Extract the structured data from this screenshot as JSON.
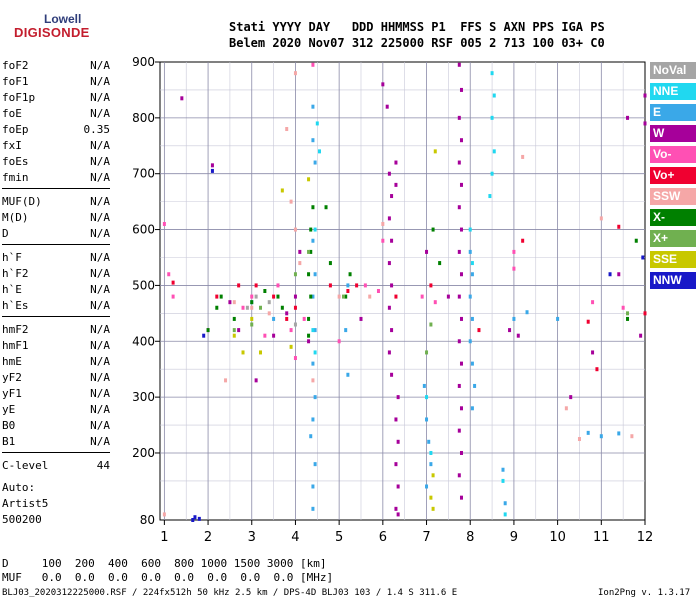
{
  "logo": {
    "top": "Lowell",
    "bottom": "DIGISONDE"
  },
  "header": {
    "labels": "Stati YYYY DAY   DDD HHMMSS P1  FFS S AXN PPS IGA PS",
    "values": "Belem 2020 Nov07 312 225000 RSF 005 2 713 100 03+ C0"
  },
  "params": [
    {
      "k": "foF2",
      "v": "N/A"
    },
    {
      "k": "foF1",
      "v": "N/A"
    },
    {
      "k": "foF1p",
      "v": "N/A"
    },
    {
      "k": "foE",
      "v": "N/A"
    },
    {
      "k": "foEp",
      "v": "0.35"
    },
    {
      "k": "fxI",
      "v": "N/A"
    },
    {
      "k": "foEs",
      "v": "N/A"
    },
    {
      "k": "fmin",
      "v": "N/A"
    },
    {
      "k": "MUF(D)",
      "v": "N/A"
    },
    {
      "k": "M(D)",
      "v": "N/A"
    },
    {
      "k": "D",
      "v": "N/A"
    },
    {
      "k": "h`F",
      "v": "N/A"
    },
    {
      "k": "h`F2",
      "v": "N/A"
    },
    {
      "k": "h`E",
      "v": "N/A"
    },
    {
      "k": "h`Es",
      "v": "N/A"
    },
    {
      "k": "hmF2",
      "v": "N/A"
    },
    {
      "k": "hmF1",
      "v": "N/A"
    },
    {
      "k": "hmE",
      "v": "N/A"
    },
    {
      "k": "yF2",
      "v": "N/A"
    },
    {
      "k": "yF1",
      "v": "N/A"
    },
    {
      "k": "yE",
      "v": "N/A"
    },
    {
      "k": "B0",
      "v": "N/A"
    },
    {
      "k": "B1",
      "v": "N/A"
    },
    {
      "k": "C-level",
      "v": "44"
    }
  ],
  "auto": {
    "line1": "Auto:",
    "line2": "Artist5",
    "line3": "500200"
  },
  "footer": {
    "d_row": "D     100  200  400  600  800 1000 1500 3000 [km]",
    "muf_row": "MUF   0.0  0.0  0.0  0.0  0.0  0.0  0.0  0.0 [MHz]",
    "file_info": "BLJ03_2020312225000.RSF / 224fx512h 50 kHz 2.5 km / DPS-4D BLJ03 103 / 1.4 S 311.6 E",
    "version": "Ion2Png v. 1.3.17"
  },
  "colors": {
    "NoVal": "#a5a5a5",
    "NNE": "#20d8f0",
    "E": "#3aa8e8",
    "W": "#a6009a",
    "Vo-": "#ff50b4",
    "Vo+": "#f00030",
    "SSW": "#f5a7a7",
    "X-": "#008000",
    "X+": "#70b050",
    "SSE": "#c8c800",
    "NNW": "#1818c8"
  },
  "chart_data": {
    "type": "scatter",
    "title": "",
    "xlabel": "",
    "ylabel": "",
    "xlim": [
      0.9,
      12
    ],
    "ylim": [
      80,
      900
    ],
    "x_ticks": [
      1,
      2,
      3,
      4,
      5,
      6,
      7,
      8,
      9,
      10,
      11,
      12
    ],
    "y_ticks": [
      200,
      300,
      400,
      500,
      600,
      700,
      800,
      900
    ],
    "y_tick_labels": [
      "200",
      "300",
      "400",
      "500",
      "600",
      "700",
      "800",
      "900"
    ],
    "y_bottom_label": "80",
    "legend": [
      "NoVal",
      "NNE",
      "E",
      "W",
      "Vo-",
      "Vo+",
      "SSW",
      "X-",
      "X+",
      "SSE",
      "NNW"
    ],
    "legend_position": "right",
    "grid": true,
    "series": [
      {
        "name": "E",
        "points": [
          [
            4.4,
            820
          ],
          [
            4.4,
            760
          ],
          [
            4.45,
            720
          ],
          [
            4.4,
            580
          ],
          [
            4.45,
            520
          ],
          [
            4.4,
            480
          ],
          [
            4.45,
            420
          ],
          [
            4.4,
            360
          ],
          [
            4.45,
            300
          ],
          [
            4.4,
            260
          ],
          [
            4.35,
            230
          ],
          [
            4.45,
            180
          ],
          [
            4.4,
            140
          ],
          [
            4.4,
            100
          ],
          [
            6.95,
            320
          ],
          [
            7.0,
            260
          ],
          [
            7.05,
            220
          ],
          [
            7.1,
            180
          ],
          [
            7.0,
            140
          ],
          [
            8.0,
            560
          ],
          [
            8.05,
            520
          ],
          [
            8.0,
            480
          ],
          [
            8.05,
            440
          ],
          [
            8.0,
            400
          ],
          [
            8.05,
            360
          ],
          [
            8.1,
            320
          ],
          [
            8.05,
            280
          ],
          [
            8.75,
            170
          ],
          [
            8.8,
            110
          ],
          [
            5.2,
            500
          ],
          [
            5.15,
            420
          ],
          [
            5.2,
            340
          ],
          [
            3.0,
            470
          ],
          [
            3.5,
            440
          ],
          [
            11.4,
            235
          ],
          [
            11.0,
            230
          ],
          [
            10.7,
            236
          ],
          [
            9.0,
            440
          ],
          [
            9.3,
            452
          ],
          [
            10.0,
            440
          ]
        ]
      },
      {
        "name": "NNE",
        "points": [
          [
            8.5,
            880
          ],
          [
            8.55,
            840
          ],
          [
            8.5,
            800
          ],
          [
            8.55,
            740
          ],
          [
            8.5,
            700
          ],
          [
            8.45,
            660
          ],
          [
            4.5,
            790
          ],
          [
            4.55,
            740
          ],
          [
            4.45,
            600
          ],
          [
            8.0,
            600
          ],
          [
            8.05,
            540
          ],
          [
            4.4,
            420
          ],
          [
            4.45,
            380
          ],
          [
            7.0,
            300
          ],
          [
            7.1,
            200
          ],
          [
            8.75,
            150
          ],
          [
            8.8,
            90
          ]
        ]
      },
      {
        "name": "W",
        "points": [
          [
            7.75,
            895
          ],
          [
            7.8,
            850
          ],
          [
            7.75,
            800
          ],
          [
            7.8,
            760
          ],
          [
            7.75,
            720
          ],
          [
            7.8,
            680
          ],
          [
            7.75,
            640
          ],
          [
            7.8,
            600
          ],
          [
            7.75,
            560
          ],
          [
            7.8,
            520
          ],
          [
            7.75,
            480
          ],
          [
            7.8,
            440
          ],
          [
            7.75,
            400
          ],
          [
            7.8,
            360
          ],
          [
            7.75,
            320
          ],
          [
            7.8,
            280
          ],
          [
            7.75,
            240
          ],
          [
            7.8,
            200
          ],
          [
            7.75,
            160
          ],
          [
            7.8,
            120
          ],
          [
            6.15,
            700
          ],
          [
            6.2,
            660
          ],
          [
            6.15,
            620
          ],
          [
            6.2,
            580
          ],
          [
            6.15,
            540
          ],
          [
            6.2,
            500
          ],
          [
            6.15,
            460
          ],
          [
            6.2,
            420
          ],
          [
            6.15,
            380
          ],
          [
            6.2,
            340
          ],
          [
            6.35,
            300
          ],
          [
            6.3,
            260
          ],
          [
            6.35,
            220
          ],
          [
            6.3,
            180
          ],
          [
            6.35,
            140
          ],
          [
            6.3,
            100
          ],
          [
            6.35,
            90
          ],
          [
            6.0,
            860
          ],
          [
            6.1,
            820
          ],
          [
            6.3,
            720
          ],
          [
            6.3,
            680
          ],
          [
            4.3,
            400
          ],
          [
            3.5,
            410
          ],
          [
            3.8,
            450
          ],
          [
            4.0,
            480
          ],
          [
            2.5,
            470
          ],
          [
            2.7,
            420
          ],
          [
            1.4,
            835
          ],
          [
            2.1,
            715
          ],
          [
            3.1,
            330
          ],
          [
            4.1,
            560
          ],
          [
            5.5,
            440
          ],
          [
            7.0,
            560
          ],
          [
            7.5,
            480
          ],
          [
            8.9,
            420
          ],
          [
            9.1,
            410
          ],
          [
            10.3,
            300
          ],
          [
            10.8,
            380
          ],
          [
            11.4,
            520
          ],
          [
            11.9,
            410
          ],
          [
            12.0,
            840
          ],
          [
            12.0,
            790
          ],
          [
            11.6,
            800
          ]
        ]
      },
      {
        "name": "NNW",
        "points": [
          [
            1.7,
            85
          ],
          [
            1.8,
            82
          ],
          [
            1.65,
            80
          ],
          [
            2.1,
            705
          ],
          [
            11.2,
            520
          ],
          [
            11.95,
            550
          ],
          [
            1.9,
            410
          ]
        ]
      },
      {
        "name": "Vo-",
        "points": [
          [
            4.4,
            895
          ],
          [
            4.2,
            440
          ],
          [
            3.6,
            500
          ],
          [
            3.0,
            480
          ],
          [
            2.8,
            460
          ],
          [
            5.6,
            500
          ],
          [
            5.9,
            490
          ],
          [
            6.0,
            580
          ],
          [
            3.3,
            410
          ],
          [
            3.9,
            420
          ],
          [
            1.1,
            520
          ],
          [
            1.2,
            480
          ],
          [
            9.0,
            530
          ],
          [
            9.0,
            560
          ],
          [
            10.8,
            470
          ],
          [
            11.5,
            460
          ],
          [
            1.0,
            610
          ],
          [
            2.0,
            420
          ],
          [
            4.0,
            370
          ],
          [
            5.0,
            400
          ],
          [
            6.9,
            480
          ],
          [
            7.2,
            470
          ]
        ]
      },
      {
        "name": "Vo+",
        "points": [
          [
            1.2,
            505
          ],
          [
            2.2,
            480
          ],
          [
            3.1,
            500
          ],
          [
            3.5,
            480
          ],
          [
            4.0,
            460
          ],
          [
            5.2,
            490
          ],
          [
            5.4,
            500
          ],
          [
            6.3,
            480
          ],
          [
            7.1,
            500
          ],
          [
            8.2,
            420
          ],
          [
            10.7,
            435
          ],
          [
            10.9,
            350
          ],
          [
            11.4,
            605
          ],
          [
            12.0,
            450
          ],
          [
            9.2,
            580
          ],
          [
            4.8,
            500
          ],
          [
            2.7,
            500
          ],
          [
            3.8,
            440
          ]
        ]
      },
      {
        "name": "SSW",
        "points": [
          [
            4.0,
            880
          ],
          [
            3.8,
            780
          ],
          [
            3.9,
            650
          ],
          [
            4.0,
            600
          ],
          [
            4.1,
            540
          ],
          [
            2.6,
            470
          ],
          [
            3.0,
            460
          ],
          [
            3.4,
            450
          ],
          [
            5.0,
            480
          ],
          [
            5.7,
            480
          ],
          [
            6.0,
            610
          ],
          [
            10.2,
            280
          ],
          [
            10.5,
            225
          ],
          [
            11.7,
            230
          ],
          [
            4.4,
            330
          ],
          [
            2.4,
            330
          ],
          [
            9.2,
            730
          ],
          [
            1.0,
            90
          ],
          [
            11.0,
            620
          ]
        ]
      },
      {
        "name": "X-",
        "points": [
          [
            4.4,
            640
          ],
          [
            4.35,
            600
          ],
          [
            4.35,
            560
          ],
          [
            4.3,
            520
          ],
          [
            4.35,
            480
          ],
          [
            4.3,
            440
          ],
          [
            4.3,
            410
          ],
          [
            2.0,
            420
          ],
          [
            2.2,
            460
          ],
          [
            2.6,
            440
          ],
          [
            3.0,
            470
          ],
          [
            3.3,
            490
          ],
          [
            3.6,
            480
          ],
          [
            3.7,
            460
          ],
          [
            5.25,
            520
          ],
          [
            5.15,
            480
          ],
          [
            7.15,
            600
          ],
          [
            7.3,
            540
          ],
          [
            4.7,
            640
          ],
          [
            4.8,
            540
          ],
          [
            2.3,
            480
          ],
          [
            11.6,
            440
          ],
          [
            11.8,
            580
          ]
        ]
      },
      {
        "name": "X+",
        "points": [
          [
            2.6,
            420
          ],
          [
            3.0,
            430
          ],
          [
            3.2,
            460
          ],
          [
            4.3,
            560
          ],
          [
            7.1,
            430
          ],
          [
            7.0,
            380
          ],
          [
            11.6,
            450
          ],
          [
            4.0,
            520
          ],
          [
            5.1,
            480
          ]
        ]
      },
      {
        "name": "SSE",
        "points": [
          [
            2.6,
            410
          ],
          [
            2.8,
            380
          ],
          [
            3.2,
            380
          ],
          [
            3.0,
            440
          ],
          [
            3.9,
            390
          ],
          [
            7.15,
            160
          ],
          [
            7.1,
            120
          ],
          [
            7.15,
            100
          ],
          [
            7.2,
            740
          ],
          [
            4.3,
            690
          ],
          [
            3.7,
            670
          ]
        ]
      },
      {
        "name": "NoVal",
        "points": [
          [
            2.9,
            460
          ],
          [
            3.1,
            480
          ],
          [
            3.4,
            470
          ],
          [
            4.0,
            430
          ]
        ]
      }
    ]
  }
}
